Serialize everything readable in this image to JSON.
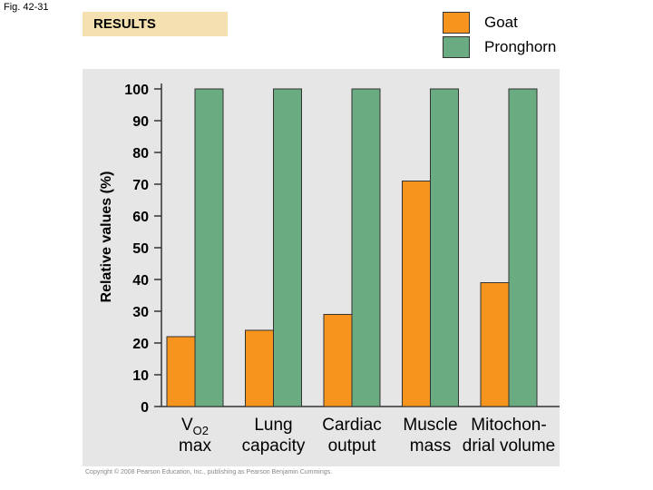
{
  "figure_label": "Fig. 42-31",
  "results_label": "RESULTS",
  "legend": [
    {
      "label": "Goat",
      "color": "#f7941d"
    },
    {
      "label": "Pronghorn",
      "color": "#6aab82"
    }
  ],
  "copyright": "Copyright © 2008 Pearson Education, Inc., publishing as Pearson Benjamin Cummings.",
  "chart_data": {
    "type": "bar",
    "title": "",
    "xlabel": "",
    "ylabel": "Relative values (%)",
    "ylim": [
      0,
      100
    ],
    "yticks": [
      0,
      10,
      20,
      30,
      40,
      50,
      60,
      70,
      80,
      90,
      100
    ],
    "categories": [
      {
        "lines": [
          "V",
          "max"
        ],
        "subscript": "O2"
      },
      {
        "lines": [
          "Lung",
          "capacity"
        ]
      },
      {
        "lines": [
          "Cardiac",
          "output"
        ]
      },
      {
        "lines": [
          "Muscle",
          "mass"
        ]
      },
      {
        "lines": [
          "Mitochon-",
          "drial volume"
        ]
      }
    ],
    "series": [
      {
        "name": "Goat",
        "color": "#f7941d",
        "values": [
          22,
          24,
          29,
          71,
          39
        ]
      },
      {
        "name": "Pronghorn",
        "color": "#6aab82",
        "values": [
          100,
          100,
          100,
          100,
          100
        ]
      }
    ]
  }
}
